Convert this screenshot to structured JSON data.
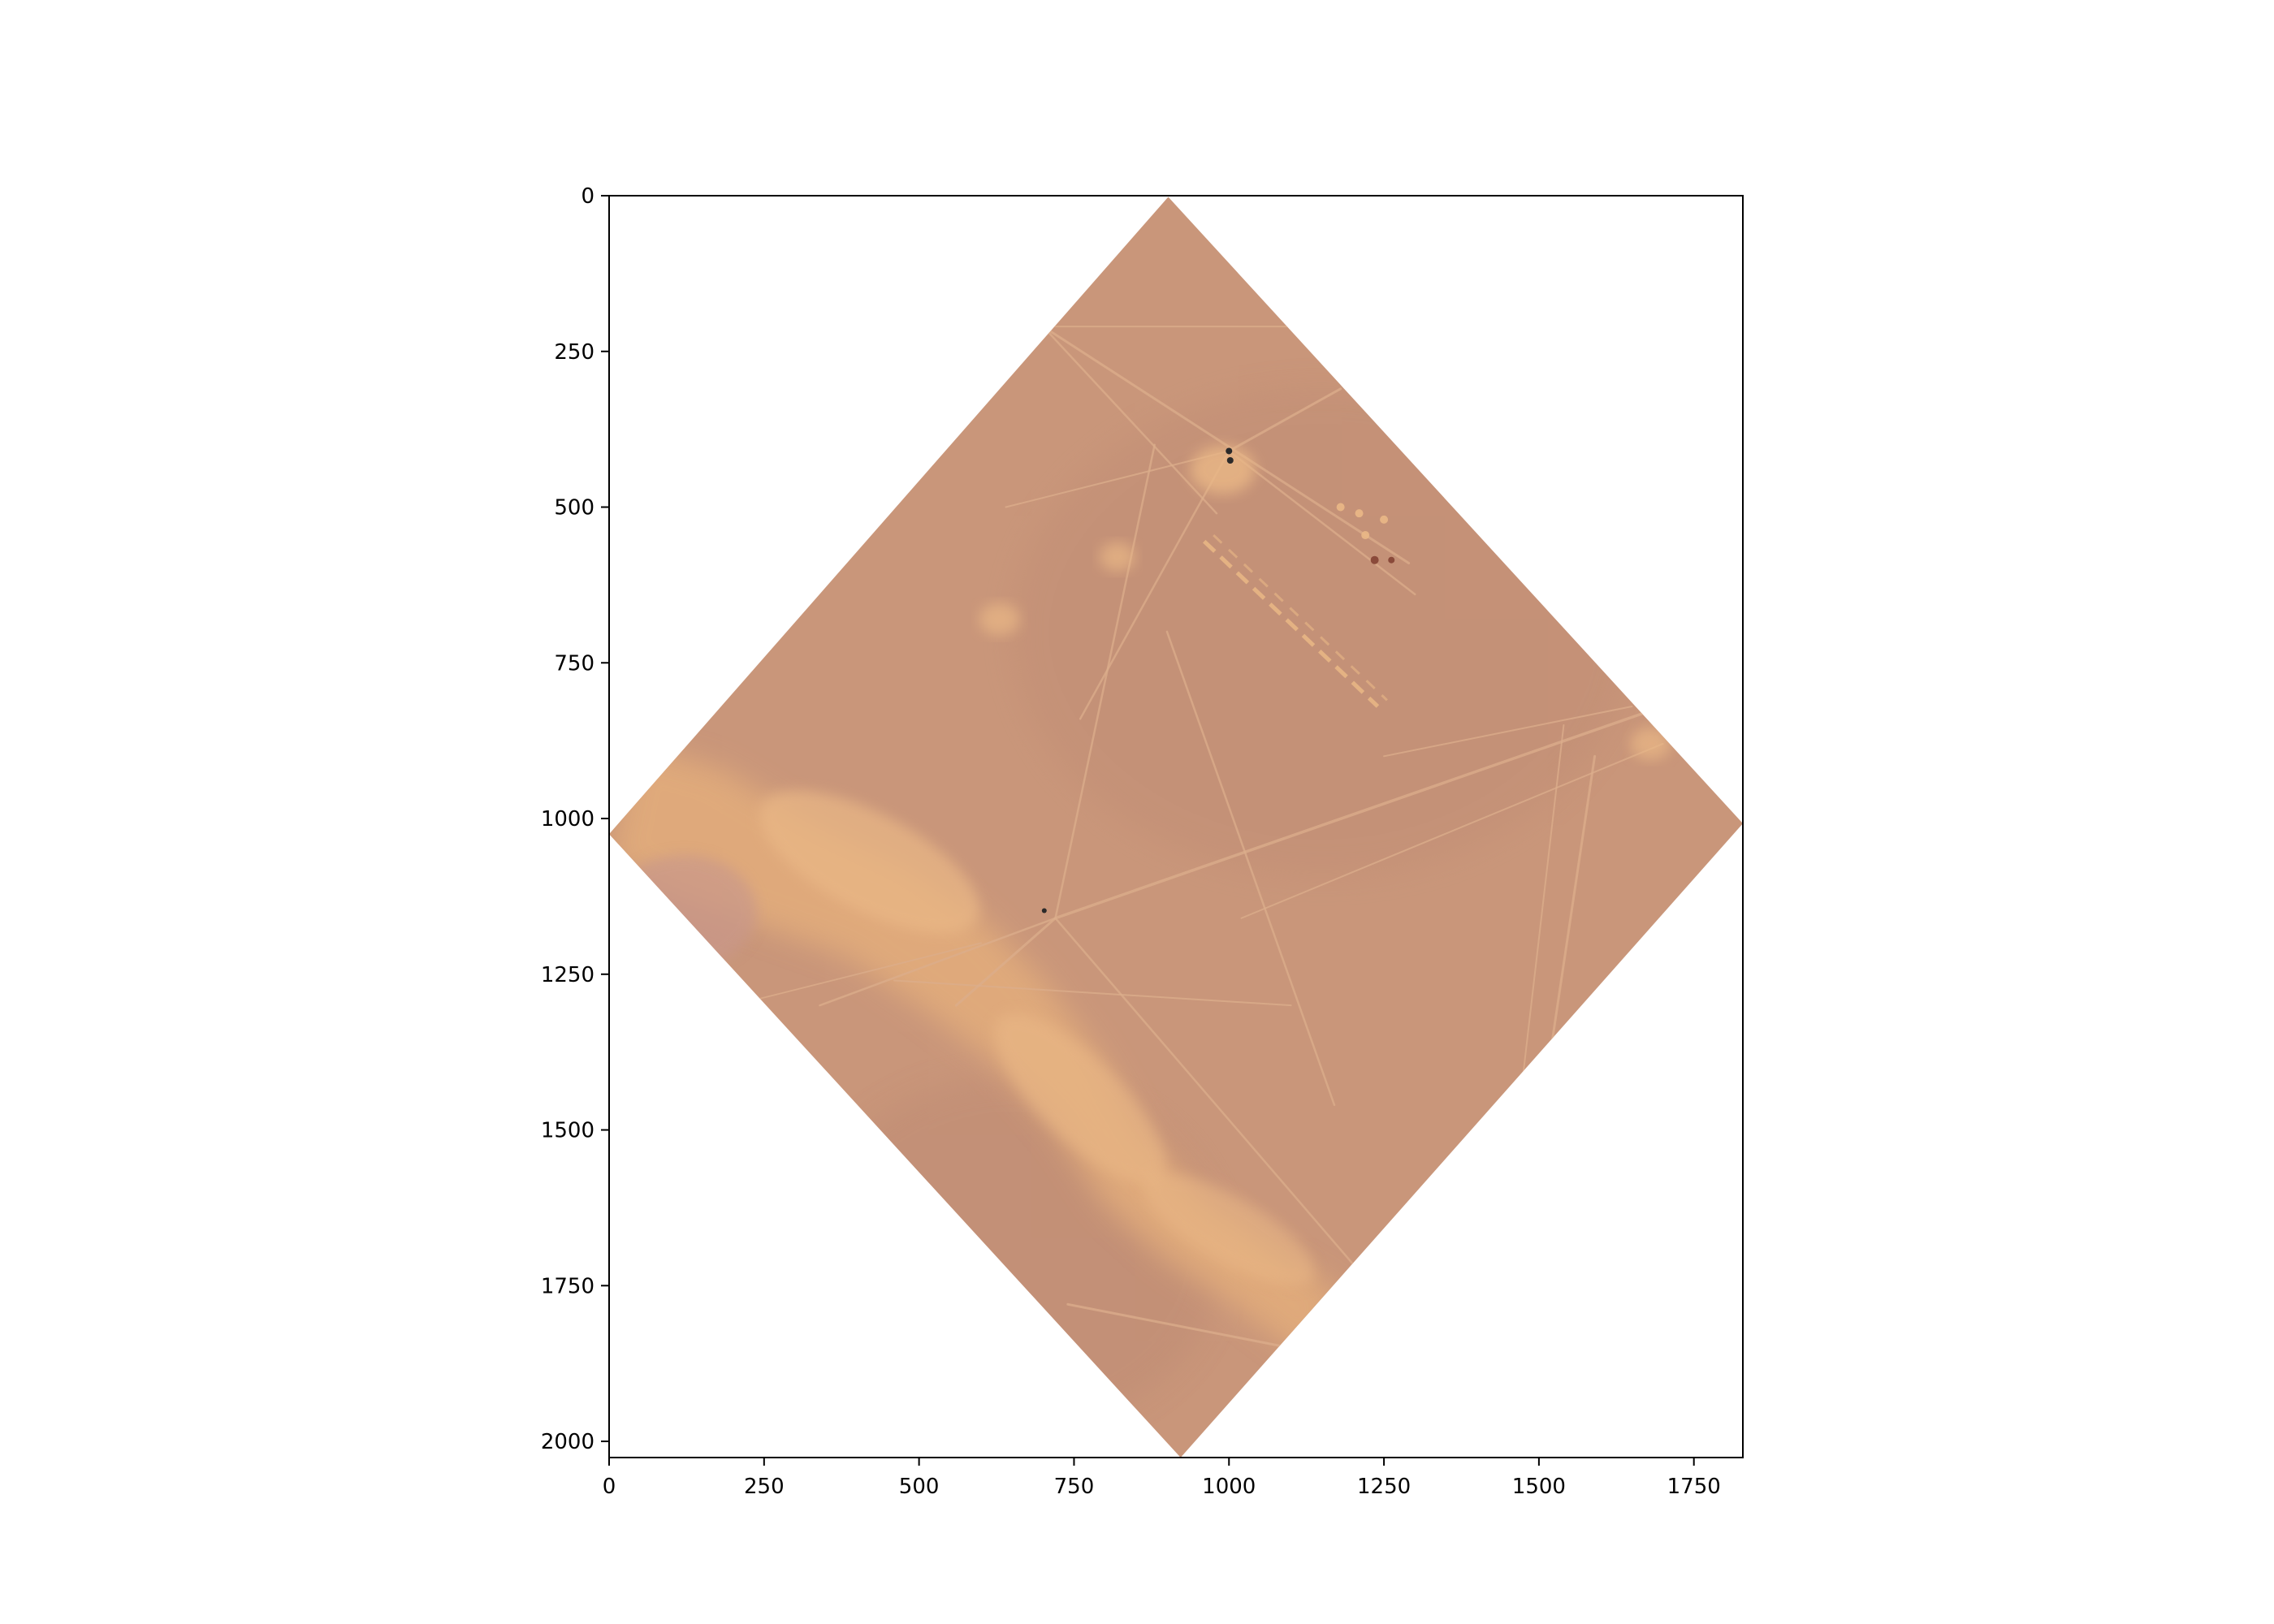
{
  "figure": {
    "background": "#ffffff",
    "axes_color": "#000000"
  },
  "image": {
    "description_tags": [
      "satellite",
      "desert",
      "tracks"
    ],
    "palette": {
      "ground": "#c9967a",
      "ground_dark": "#bd8a73",
      "sand": "#e3ad7c",
      "sand_light": "#eab886",
      "track": "#dcae8c",
      "speck": "#2b2a2a"
    },
    "extent": {
      "x": [
        0,
        1829
      ],
      "y": [
        2026,
        0
      ]
    },
    "footprint": {
      "top": [
        902,
        2
      ],
      "right": [
        1829,
        1008
      ],
      "bottom": [
        922,
        2026
      ],
      "left": [
        0,
        1025
      ]
    }
  },
  "axes": {
    "x_ticks": [
      "0",
      "250",
      "500",
      "750",
      "1000",
      "1250",
      "1500",
      "1750"
    ],
    "x_tick_values": [
      0,
      250,
      500,
      750,
      1000,
      1250,
      1500,
      1750
    ],
    "y_ticks": [
      "0",
      "250",
      "500",
      "750",
      "1000",
      "1250",
      "1500",
      "1750",
      "2000"
    ],
    "y_tick_values": [
      0,
      250,
      500,
      750,
      1000,
      1250,
      1500,
      1750,
      2000
    ]
  }
}
